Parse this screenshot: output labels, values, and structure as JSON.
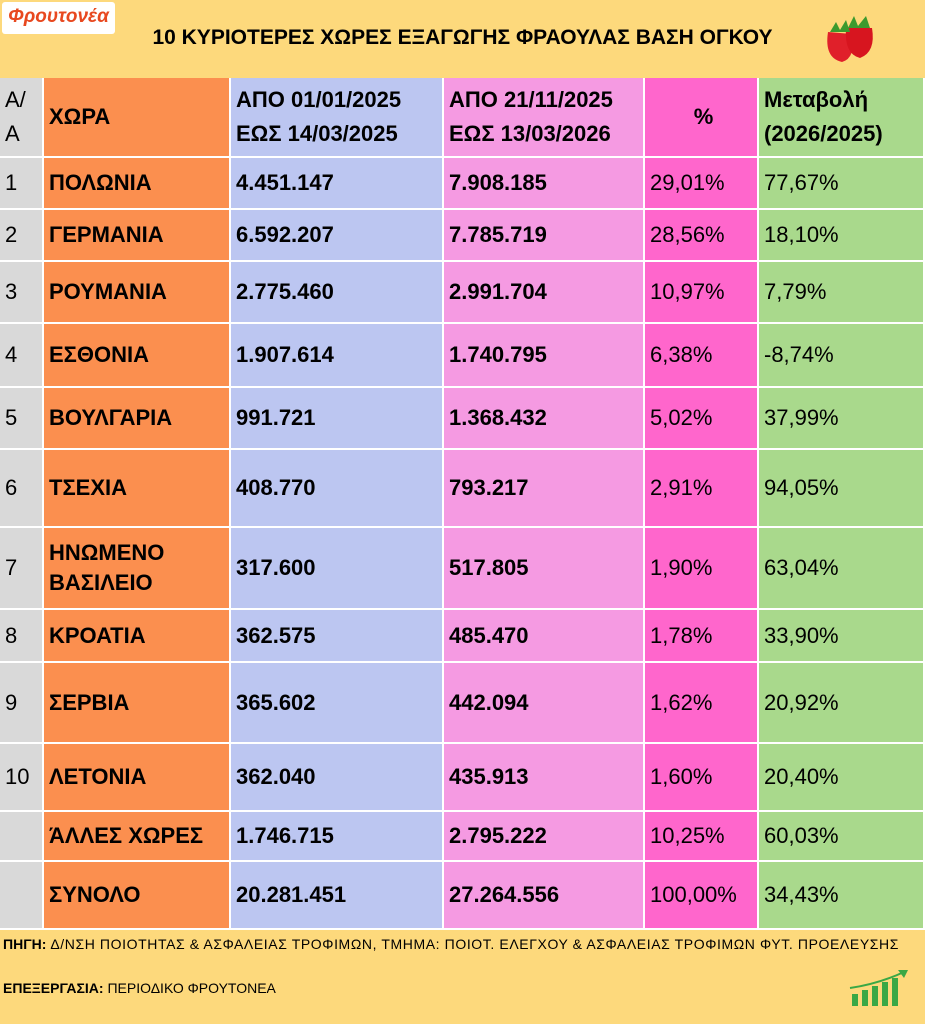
{
  "logo": "Φρουτονέα",
  "title": "10 ΚΥΡΙΟΤΕΡΕΣ ΧΩΡΕΣ ΕΞΑΓΩΓΗΣ ΦΡΑΟΥΛΑΣ ΒΑΣΗ ΟΓΚΟΥ",
  "table": {
    "header": [
      [
        "Α/",
        "Α"
      ],
      [
        "ΧΩΡΑ"
      ],
      [
        "ΑΠΟ 01/01/2025",
        "ΕΩΣ  14/03/2025"
      ],
      [
        "ΑΠΟ 21/11/2025",
        "ΕΩΣ  13/03/2026"
      ],
      [
        "%"
      ],
      [
        "Μεταβολή",
        "(2026/2025)"
      ]
    ],
    "rows": [
      [
        "1",
        "ΠΟΛΩΝΙΑ",
        "4.451.147",
        "7.908.185",
        "29,01%",
        "77,67%"
      ],
      [
        "2",
        "ΓΕΡΜΑΝΙΑ",
        "6.592.207",
        "7.785.719",
        "28,56%",
        "18,10%"
      ],
      [
        "3",
        "ΡΟΥΜΑΝΙΑ",
        "2.775.460",
        "2.991.704",
        "10,97%",
        "7,79%"
      ],
      [
        "4",
        "ΕΣΘΟΝΙΑ",
        "1.907.614",
        "1.740.795",
        "6,38%",
        "-8,74%"
      ],
      [
        "5",
        "ΒΟΥΛΓΑΡΙΑ",
        "991.721",
        "1.368.432",
        "5,02%",
        "37,99%"
      ],
      [
        "6",
        "ΤΣΕΧΙΑ",
        "408.770",
        "793.217",
        "2,91%",
        "94,05%"
      ],
      [
        "7",
        "ΗΝΩΜΕΝΟ ΒΑΣΙΛΕΙΟ",
        "317.600",
        "517.805",
        "1,90%",
        "63,04%"
      ],
      [
        "8",
        "ΚΡΟΑΤΙΑ",
        "362.575",
        "485.470",
        "1,78%",
        "33,90%"
      ],
      [
        "9",
        "ΣΕΡΒΙΑ",
        "365.602",
        "442.094",
        "1,62%",
        "20,92%"
      ],
      [
        "10",
        "ΛΕΤΟΝΙΑ",
        "362.040",
        "435.913",
        "1,60%",
        "20,40%"
      ],
      [
        null,
        "ΆΛΛΕΣ ΧΩΡΕΣ",
        "1.746.715",
        "2.795.222",
        "10,25%",
        "60,03%"
      ],
      [
        null,
        "ΣΥΝΟΛΟ",
        "20.281.451",
        "27.264.556",
        "100,00%",
        "34,43%"
      ]
    ]
  },
  "footer": {
    "source_label": "ΠΗΓΗ:",
    "source": "Δ/ΝΣΗ ΠΟΙΟΤΗΤΑΣ & ΑΣΦΑΛΕΙΑΣ ΤΡΟΦΙΜΩΝ, ΤΜΗΜΑ: ΠΟΙΟΤ. ΕΛΕΓΧΟΥ & ΑΣΦΑΛΕΙΑΣ ΤΡΟΦΙΜΩΝ ΦΥΤ. ΠΡΟΕΛΕΥΣΗΣ",
    "processing_label": "ΕΠΕΞΕΡΓΑΣΙΑ:",
    "processing": "ΠΕΡΙΟΔΙΚΟ ΦΡΟΥΤΟΝΕΑ"
  }
}
